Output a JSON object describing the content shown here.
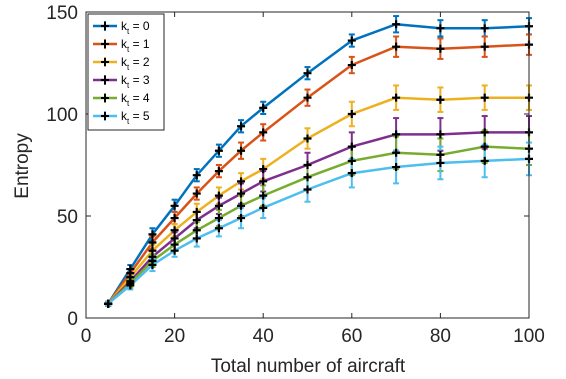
{
  "chart_data": {
    "type": "line",
    "xlabel": "Total number of aircraft",
    "ylabel": "Entropy",
    "xlim": [
      0,
      100
    ],
    "ylim": [
      0,
      150
    ],
    "x_ticks": [
      "0",
      "20",
      "40",
      "60",
      "80",
      "100"
    ],
    "y_ticks": [
      "0",
      "50",
      "100",
      "150"
    ],
    "grid": false,
    "legend_position": "top-left",
    "x": [
      5,
      10,
      15,
      20,
      25,
      30,
      35,
      40,
      50,
      60,
      70,
      80,
      90,
      100
    ],
    "series": [
      {
        "name": "k_t = 0",
        "legend_base": "k",
        "legend_sub": "t",
        "legend_rest": " = 0",
        "color": "#0072BD",
        "values": [
          7,
          24,
          41,
          55,
          70,
          82,
          94,
          103,
          120,
          136,
          144,
          142,
          142,
          143
        ],
        "errors": [
          1,
          2,
          3,
          3,
          3,
          3,
          3,
          3,
          3,
          3,
          4,
          4,
          4,
          4
        ]
      },
      {
        "name": "k_t = 1",
        "legend_base": "k",
        "legend_sub": "t",
        "legend_rest": " = 1",
        "color": "#D95319",
        "values": [
          7,
          22,
          37,
          49,
          61,
          72,
          82,
          91,
          108,
          124,
          133,
          132,
          133,
          134
        ],
        "errors": [
          1,
          2,
          3,
          3,
          3,
          3,
          4,
          4,
          4,
          4,
          5,
          5,
          5,
          5
        ]
      },
      {
        "name": "k_t = 2",
        "legend_base": "k",
        "legend_sub": "t",
        "legend_rest": " = 2",
        "color": "#EDB120",
        "values": [
          7,
          20,
          33,
          43,
          52,
          60,
          67,
          73,
          88,
          100,
          108,
          107,
          108,
          108
        ],
        "errors": [
          1,
          2,
          3,
          3,
          4,
          4,
          4,
          5,
          5,
          6,
          6,
          6,
          6,
          6
        ]
      },
      {
        "name": "k_t = 3",
        "legend_base": "k",
        "legend_sub": "t",
        "legend_rest": " = 3",
        "color": "#7E2F8E",
        "values": [
          7,
          18,
          30,
          39,
          48,
          55,
          61,
          67,
          75,
          84,
          90,
          90,
          91,
          91
        ],
        "errors": [
          1,
          2,
          3,
          3,
          4,
          4,
          5,
          5,
          6,
          7,
          8,
          8,
          8,
          8
        ]
      },
      {
        "name": "k_t = 4",
        "legend_base": "k",
        "legend_sub": "t",
        "legend_rest": " = 4",
        "color": "#77AC30",
        "values": [
          7,
          17,
          28,
          36,
          43,
          49,
          55,
          60,
          69,
          77,
          81,
          80,
          84,
          83
        ],
        "errors": [
          1,
          2,
          3,
          3,
          4,
          4,
          5,
          5,
          6,
          7,
          8,
          8,
          8,
          8
        ]
      },
      {
        "name": "k_t = 5",
        "legend_base": "k",
        "legend_sub": "t",
        "legend_rest": " = 5",
        "color": "#4DBEEE",
        "values": [
          7,
          16,
          26,
          33,
          39,
          44,
          49,
          54,
          63,
          71,
          74,
          76,
          77,
          78
        ],
        "errors": [
          1,
          2,
          3,
          3,
          4,
          4,
          5,
          5,
          6,
          7,
          8,
          8,
          8,
          8
        ]
      }
    ]
  }
}
